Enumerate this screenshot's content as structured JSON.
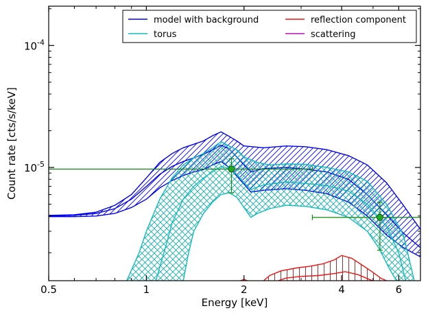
{
  "chart_data": {
    "type": "line",
    "xlabel": "Energy [keV]",
    "ylabel": "Count rate [cts/s/keV]",
    "xscale": "log",
    "yscale": "log",
    "xlim": [
      0.5,
      7.0
    ],
    "ylim": [
      1.18e-06,
      0.00021
    ],
    "x_ticks": [
      0.5,
      1,
      2,
      4,
      6
    ],
    "x_tick_labels": [
      "0.5",
      "1",
      "2",
      "4",
      "6"
    ],
    "y_ticks": [
      1e-05,
      0.0001
    ],
    "y_tick_labels": [
      {
        "base": "10",
        "exp": "-5"
      },
      {
        "base": "10",
        "exp": "-4"
      }
    ],
    "legend": {
      "placement": "top-right",
      "columns": 2,
      "entries": [
        {
          "label": "model with background",
          "color": "#0000ee"
        },
        {
          "label": "reflection component",
          "color": "#ee1111"
        },
        {
          "label": "torus",
          "color": "#11bbbb"
        },
        {
          "label": "scattering",
          "color": "#bb11bb"
        }
      ]
    },
    "series": [
      {
        "key": "model",
        "color": "#0000ee",
        "hatch": "diagonal",
        "upper": [
          [
            0.5,
            4.05e-06
          ],
          [
            0.6,
            4.1e-06
          ],
          [
            0.7,
            4.3e-06
          ],
          [
            0.8,
            4.9e-06
          ],
          [
            0.9,
            6e-06
          ],
          [
            1.0,
            8.2e-06
          ],
          [
            1.1,
            1.1e-05
          ],
          [
            1.2,
            1.3e-05
          ],
          [
            1.3,
            1.45e-05
          ],
          [
            1.4,
            1.55e-05
          ],
          [
            1.5,
            1.65e-05
          ],
          [
            1.6,
            1.82e-05
          ],
          [
            1.7,
            1.96e-05
          ],
          [
            1.8,
            1.8e-05
          ],
          [
            1.9,
            1.65e-05
          ],
          [
            2.0,
            1.5e-05
          ],
          [
            2.3,
            1.45e-05
          ],
          [
            2.7,
            1.5e-05
          ],
          [
            3.1,
            1.48e-05
          ],
          [
            3.6,
            1.4e-05
          ],
          [
            4.2,
            1.25e-05
          ],
          [
            4.8,
            1.05e-05
          ],
          [
            5.5,
            7.5e-06
          ],
          [
            6.2,
            4.9e-06
          ],
          [
            7.0,
            3.1e-06
          ]
        ],
        "median": [
          [
            0.5,
            4e-06
          ],
          [
            0.6,
            4.05e-06
          ],
          [
            0.7,
            4.2e-06
          ],
          [
            0.8,
            4.6e-06
          ],
          [
            0.9,
            5.5e-06
          ],
          [
            1.0,
            7e-06
          ],
          [
            1.1,
            8.8e-06
          ],
          [
            1.2,
            1.02e-05
          ],
          [
            1.3,
            1.12e-05
          ],
          [
            1.4,
            1.2e-05
          ],
          [
            1.5,
            1.28e-05
          ],
          [
            1.6,
            1.4e-05
          ],
          [
            1.7,
            1.52e-05
          ],
          [
            1.8,
            1.42e-05
          ],
          [
            1.9,
            1.22e-05
          ],
          [
            2.0,
            1.05e-05
          ],
          [
            2.1,
            9.2e-06
          ],
          [
            2.3,
            9.8e-06
          ],
          [
            2.7,
            1e-05
          ],
          [
            3.1,
            9.7e-06
          ],
          [
            3.6,
            9.2e-06
          ],
          [
            4.2,
            8e-06
          ],
          [
            4.8,
            6e-06
          ],
          [
            5.5,
            4.1e-06
          ],
          [
            6.2,
            2.9e-06
          ],
          [
            7.0,
            2.2e-06
          ]
        ],
        "lower": [
          [
            0.5,
            3.95e-06
          ],
          [
            0.6,
            3.95e-06
          ],
          [
            0.7,
            4e-06
          ],
          [
            0.8,
            4.2e-06
          ],
          [
            0.9,
            4.7e-06
          ],
          [
            1.0,
            5.5e-06
          ],
          [
            1.1,
            6.8e-06
          ],
          [
            1.2,
            7.8e-06
          ],
          [
            1.3,
            8.6e-06
          ],
          [
            1.4,
            9.2e-06
          ],
          [
            1.5,
            9.6e-06
          ],
          [
            1.6,
            1.05e-05
          ],
          [
            1.7,
            1.12e-05
          ],
          [
            1.8,
            1e-05
          ],
          [
            1.9,
            8.5e-06
          ],
          [
            2.0,
            7.3e-06
          ],
          [
            2.1,
            6.3e-06
          ],
          [
            2.3,
            6.5e-06
          ],
          [
            2.7,
            6.7e-06
          ],
          [
            3.1,
            6.5e-06
          ],
          [
            3.6,
            6.1e-06
          ],
          [
            4.2,
            5.2e-06
          ],
          [
            4.8,
            4e-06
          ],
          [
            5.5,
            2.8e-06
          ],
          [
            6.2,
            2.2e-06
          ],
          [
            7.0,
            1.85e-06
          ]
        ]
      },
      {
        "key": "torus",
        "color": "#11bbbb",
        "hatch": "cross",
        "upper": [
          [
            0.87,
            1.18e-06
          ],
          [
            0.95,
            2e-06
          ],
          [
            1.0,
            3e-06
          ],
          [
            1.1,
            5.5e-06
          ],
          [
            1.2,
            8.2e-06
          ],
          [
            1.3,
            1.05e-05
          ],
          [
            1.4,
            1.2e-05
          ],
          [
            1.5,
            1.3e-05
          ],
          [
            1.6,
            1.45e-05
          ],
          [
            1.7,
            1.63e-05
          ],
          [
            1.8,
            1.5e-05
          ],
          [
            1.9,
            1.4e-05
          ],
          [
            2.0,
            1.22e-05
          ],
          [
            2.2,
            1.1e-05
          ],
          [
            2.4,
            1.05e-05
          ],
          [
            2.7,
            1.07e-05
          ],
          [
            3.1,
            1.06e-05
          ],
          [
            3.6,
            1e-05
          ],
          [
            4.2,
            9.2e-06
          ],
          [
            4.8,
            7.7e-06
          ],
          [
            5.5,
            5e-06
          ],
          [
            6.2,
            2.8e-06
          ],
          [
            6.7,
            1.18e-06
          ]
        ],
        "median": [
          [
            1.07,
            1.18e-06
          ],
          [
            1.15,
            2.3e-06
          ],
          [
            1.2,
            3.5e-06
          ],
          [
            1.3,
            5.5e-06
          ],
          [
            1.4,
            7e-06
          ],
          [
            1.5,
            8.2e-06
          ],
          [
            1.6,
            9.2e-06
          ],
          [
            1.7,
            1.02e-05
          ],
          [
            1.8,
            9.8e-06
          ],
          [
            1.9,
            8.8e-06
          ],
          [
            2.0,
            7.5e-06
          ],
          [
            2.1,
            6.6e-06
          ],
          [
            2.3,
            7.2e-06
          ],
          [
            2.7,
            7.6e-06
          ],
          [
            3.1,
            7.4e-06
          ],
          [
            3.6,
            7.1e-06
          ],
          [
            4.2,
            6.4e-06
          ],
          [
            4.8,
            5e-06
          ],
          [
            5.5,
            3.3e-06
          ],
          [
            6.0,
            2e-06
          ],
          [
            6.3,
            1.18e-06
          ]
        ],
        "lower": [
          [
            1.3,
            1.18e-06
          ],
          [
            1.35,
            2e-06
          ],
          [
            1.4,
            3e-06
          ],
          [
            1.5,
            4.2e-06
          ],
          [
            1.6,
            5.2e-06
          ],
          [
            1.7,
            6e-06
          ],
          [
            1.8,
            6.2e-06
          ],
          [
            1.9,
            5.7e-06
          ],
          [
            2.0,
            4.7e-06
          ],
          [
            2.1,
            3.9e-06
          ],
          [
            2.2,
            4.2e-06
          ],
          [
            2.4,
            4.6e-06
          ],
          [
            2.7,
            4.9e-06
          ],
          [
            3.1,
            4.8e-06
          ],
          [
            3.6,
            4.5e-06
          ],
          [
            4.2,
            3.9e-06
          ],
          [
            4.8,
            3e-06
          ],
          [
            5.2,
            2.2e-06
          ],
          [
            5.6,
            1.5e-06
          ],
          [
            5.9,
            1.18e-06
          ]
        ]
      },
      {
        "key": "reflection",
        "color": "#ee1111",
        "hatch": "vertical",
        "color_hatch": "#993333",
        "upper": [
          [
            2.3,
            1.18e-06
          ],
          [
            2.4,
            1.3e-06
          ],
          [
            2.6,
            1.42e-06
          ],
          [
            2.9,
            1.5e-06
          ],
          [
            3.2,
            1.55e-06
          ],
          [
            3.5,
            1.62e-06
          ],
          [
            3.8,
            1.75e-06
          ],
          [
            4.0,
            1.9e-06
          ],
          [
            4.3,
            1.8e-06
          ],
          [
            4.6,
            1.6e-06
          ],
          [
            5.0,
            1.38e-06
          ],
          [
            5.3,
            1.23e-06
          ],
          [
            5.5,
            1.18e-06
          ]
        ],
        "median": [
          [
            2.55,
            1.18e-06
          ],
          [
            2.7,
            1.24e-06
          ],
          [
            3.0,
            1.28e-06
          ],
          [
            3.4,
            1.3e-06
          ],
          [
            3.8,
            1.35e-06
          ],
          [
            4.1,
            1.4e-06
          ],
          [
            4.5,
            1.32e-06
          ],
          [
            4.9,
            1.2e-06
          ],
          [
            5.0,
            1.18e-06
          ]
        ],
        "lower": [
          [
            1.95,
            1.18e-06
          ],
          [
            2.0,
            1.21e-06
          ],
          [
            2.05,
            1.18e-06
          ]
        ]
      }
    ],
    "data_points": [
      {
        "x": 1.83,
        "y": 9.7e-06,
        "xerr": [
          0.5,
          3.25
        ],
        "yerr": [
          6.2e-06,
          1.18e-05
        ],
        "color": "#118811"
      },
      {
        "x": 5.25,
        "y": 3.9e-06,
        "xerr": [
          3.25,
          7.0
        ],
        "yerr": [
          2.1e-06,
          5.2e-06
        ],
        "color": "#118811"
      }
    ]
  }
}
